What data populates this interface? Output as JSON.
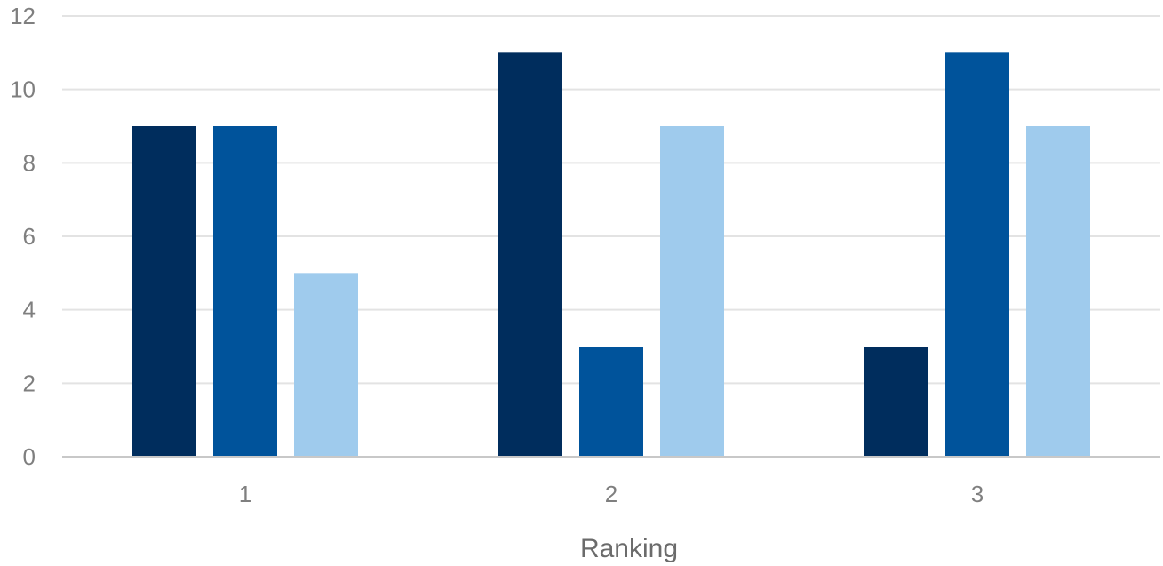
{
  "chart_data": {
    "type": "bar",
    "categories": [
      "1",
      "2",
      "3"
    ],
    "series": [
      {
        "color": "#002d5d",
        "values": [
          9,
          11,
          3
        ]
      },
      {
        "color": "#00539b",
        "values": [
          9,
          3,
          11
        ]
      },
      {
        "color": "#9fcbed",
        "values": [
          5,
          9,
          9
        ]
      }
    ],
    "xlabel": "Ranking",
    "ylabel": "",
    "ylim": [
      0,
      12
    ],
    "yticks": [
      0,
      2,
      4,
      6,
      8,
      10,
      12
    ],
    "grid": true,
    "legend": "none"
  }
}
